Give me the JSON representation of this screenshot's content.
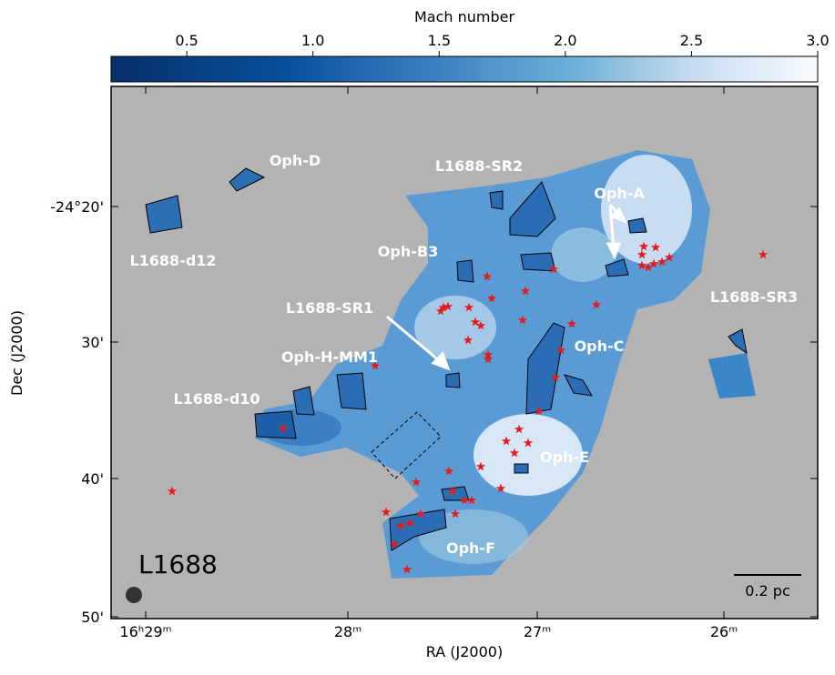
{
  "colorbar": {
    "label": "Mach number",
    "lim": [
      0.2,
      3.0
    ],
    "ticks": [
      0.5,
      {
        "value": 1,
        "label": "1.0"
      },
      1.5,
      {
        "value": 2,
        "label": "2.0"
      },
      2.5,
      {
        "value": 3,
        "label": "3.0"
      }
    ]
  },
  "xaxis": {
    "label": "RA (J2000)",
    "ticks": [
      "16ʰ29ᵐ",
      "28ᵐ",
      "27ᵐ",
      "26ᵐ"
    ]
  },
  "yaxis": {
    "label": "Dec (J2000)",
    "ticks": [
      "-24°20'",
      "30'",
      "40'",
      "50'"
    ]
  },
  "field": "L1688",
  "scalebar": "0.2 pc",
  "regions": [
    "Oph-D",
    "L1688-SR2",
    "Oph-A",
    "L1688-d12",
    "Oph-B3",
    "L1688-SR3",
    "L1688-SR1",
    "Oph-H-MM1",
    "Oph-C",
    "L1688-d10",
    "Oph-E",
    "Oph-F"
  ]
}
